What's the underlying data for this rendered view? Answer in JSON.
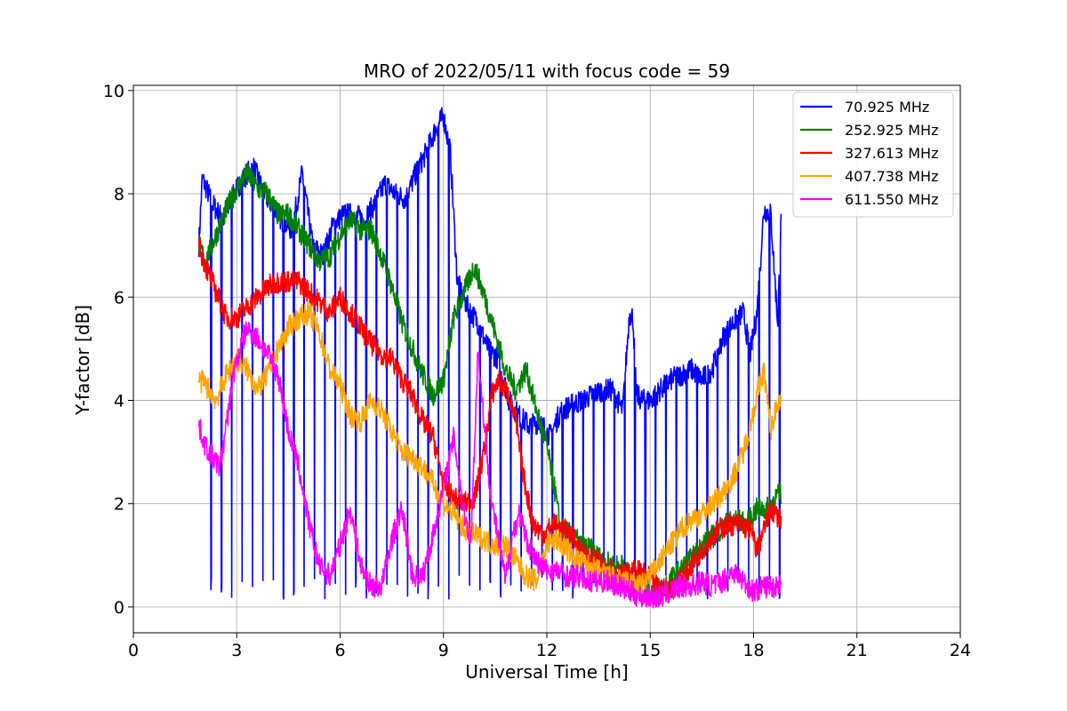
{
  "chart_data": {
    "type": "line",
    "title": "MRO of 2022/05/11 with focus code = 59",
    "xlabel": "Universal Time [h]",
    "ylabel": "Y-factor [dB]",
    "xlim": [
      0,
      24
    ],
    "ylim": [
      -0.5,
      10.1
    ],
    "xticks": [
      0,
      3,
      6,
      9,
      12,
      15,
      18,
      21,
      24
    ],
    "yticks": [
      0,
      2,
      4,
      6,
      8,
      10
    ],
    "grid": true,
    "legend_position": "top-right",
    "series": [
      {
        "name": " 70.925 MHz",
        "color": "#0000ff",
        "periodic_dips": true,
        "x": [
          1.9,
          2.0,
          2.3,
          2.6,
          3.0,
          3.3,
          3.5,
          3.8,
          4.0,
          4.3,
          4.6,
          4.9,
          5.2,
          5.5,
          5.8,
          6.1,
          6.4,
          6.7,
          7.0,
          7.3,
          7.6,
          7.9,
          8.2,
          8.5,
          8.8,
          9.0,
          9.2,
          9.4,
          9.7,
          10.0,
          10.3,
          10.6,
          10.9,
          11.2,
          11.5,
          11.8,
          12.1,
          12.4,
          12.7,
          13.0,
          13.3,
          13.6,
          13.9,
          14.2,
          14.4,
          14.5,
          14.6,
          14.8,
          15.0,
          15.3,
          15.6,
          15.9,
          16.2,
          16.5,
          16.8,
          17.1,
          17.4,
          17.7,
          17.9,
          18.1,
          18.3,
          18.5,
          18.7,
          18.8
        ],
        "y": [
          7.0,
          8.3,
          7.8,
          7.5,
          8.1,
          8.4,
          8.5,
          8.0,
          7.8,
          7.5,
          7.3,
          8.4,
          7.0,
          6.8,
          7.4,
          7.6,
          7.6,
          7.5,
          7.8,
          8.2,
          8.0,
          7.9,
          8.4,
          8.8,
          9.3,
          9.5,
          8.8,
          6.3,
          5.8,
          5.5,
          5.0,
          4.8,
          4.0,
          3.7,
          3.5,
          3.6,
          3.3,
          3.8,
          3.9,
          4.0,
          4.1,
          4.2,
          4.2,
          3.8,
          5.7,
          5.6,
          4.1,
          4.0,
          4.0,
          4.2,
          4.4,
          4.5,
          4.6,
          4.4,
          4.6,
          5.2,
          5.5,
          5.7,
          4.9,
          5.7,
          7.7,
          7.6,
          5.5,
          7.5
        ]
      },
      {
        "name": "252.925 MHz",
        "color": "#008000",
        "x": [
          1.9,
          2.1,
          2.4,
          2.7,
          3.0,
          3.3,
          3.6,
          3.9,
          4.2,
          4.5,
          4.8,
          5.1,
          5.4,
          5.7,
          6.0,
          6.3,
          6.6,
          6.9,
          7.2,
          7.5,
          7.8,
          8.1,
          8.4,
          8.7,
          9.0,
          9.3,
          9.6,
          9.9,
          10.2,
          10.5,
          10.8,
          11.1,
          11.4,
          11.7,
          12.0,
          12.2,
          12.4,
          12.7,
          13.0,
          13.3,
          13.6,
          13.9,
          14.2,
          14.5,
          14.8,
          15.1,
          15.4,
          15.7,
          16.0,
          16.3,
          16.6,
          16.9,
          17.2,
          17.5,
          17.8,
          18.1,
          18.4,
          18.6,
          18.8
        ],
        "y": [
          7.0,
          6.7,
          7.2,
          7.7,
          8.1,
          8.4,
          8.1,
          8.0,
          7.6,
          7.6,
          7.3,
          7.0,
          6.7,
          6.8,
          7.2,
          7.5,
          7.3,
          7.3,
          6.8,
          6.2,
          5.5,
          5.0,
          4.5,
          4.1,
          4.4,
          5.6,
          6.1,
          6.6,
          6.0,
          5.3,
          4.6,
          4.2,
          4.6,
          3.8,
          3.1,
          2.4,
          1.5,
          1.4,
          1.2,
          1.1,
          0.9,
          0.8,
          0.8,
          0.5,
          0.3,
          0.3,
          0.4,
          0.6,
          0.8,
          1.0,
          1.3,
          1.4,
          1.6,
          1.7,
          1.6,
          1.9,
          1.9,
          2.1,
          2.2
        ]
      },
      {
        "name": "327.613 MHz",
        "color": "#ff0000",
        "x": [
          1.9,
          2.1,
          2.4,
          2.7,
          3.0,
          3.3,
          3.6,
          3.9,
          4.2,
          4.5,
          4.8,
          5.1,
          5.4,
          5.7,
          6.0,
          6.3,
          6.6,
          6.9,
          7.2,
          7.5,
          7.8,
          8.1,
          8.4,
          8.7,
          9.0,
          9.3,
          9.6,
          9.9,
          10.2,
          10.4,
          10.6,
          10.9,
          11.1,
          11.3,
          11.6,
          11.9,
          12.2,
          12.5,
          12.8,
          13.1,
          13.4,
          13.7,
          14.0,
          14.3,
          14.6,
          14.9,
          15.2,
          15.5,
          15.8,
          16.1,
          16.4,
          16.7,
          17.0,
          17.3,
          17.6,
          17.9,
          18.1,
          18.3,
          18.5,
          18.8
        ],
        "y": [
          7.0,
          6.6,
          6.1,
          5.6,
          5.6,
          5.8,
          6.0,
          6.2,
          6.3,
          6.3,
          6.3,
          6.1,
          5.9,
          5.7,
          6.0,
          5.7,
          5.4,
          5.1,
          4.9,
          4.8,
          4.4,
          4.1,
          3.6,
          3.3,
          2.4,
          2.1,
          2.0,
          2.1,
          3.1,
          4.1,
          4.4,
          4.1,
          3.6,
          2.6,
          1.6,
          1.4,
          1.6,
          1.5,
          1.3,
          1.0,
          0.9,
          0.8,
          0.7,
          0.6,
          0.7,
          0.6,
          0.4,
          0.3,
          0.5,
          0.7,
          1.0,
          1.3,
          1.5,
          1.6,
          1.6,
          1.5,
          1.1,
          1.5,
          1.9,
          1.7
        ]
      },
      {
        "name": "407.738 MHz",
        "color": "#ffa500",
        "x": [
          1.9,
          2.1,
          2.4,
          2.7,
          3.0,
          3.3,
          3.6,
          3.9,
          4.2,
          4.5,
          4.8,
          5.1,
          5.4,
          5.7,
          6.0,
          6.3,
          6.6,
          6.9,
          7.2,
          7.5,
          7.8,
          8.1,
          8.4,
          8.7,
          9.0,
          9.3,
          9.6,
          9.9,
          10.2,
          10.5,
          10.8,
          11.1,
          11.4,
          11.7,
          12.0,
          12.3,
          12.6,
          12.9,
          13.2,
          13.5,
          13.8,
          14.1,
          14.4,
          14.7,
          15.0,
          15.3,
          15.6,
          15.9,
          16.2,
          16.5,
          16.8,
          17.1,
          17.4,
          17.7,
          17.9,
          18.1,
          18.3,
          18.5,
          18.7,
          18.8
        ],
        "y": [
          4.4,
          4.3,
          4.0,
          4.5,
          4.8,
          4.6,
          4.2,
          4.5,
          5.0,
          5.4,
          5.6,
          5.7,
          5.3,
          4.6,
          4.3,
          3.7,
          3.6,
          4.0,
          3.8,
          3.4,
          3.0,
          2.9,
          2.7,
          2.4,
          2.0,
          1.8,
          1.5,
          1.4,
          1.3,
          1.2,
          1.2,
          0.9,
          0.6,
          0.5,
          1.2,
          1.3,
          1.1,
          0.9,
          0.8,
          0.7,
          0.6,
          0.5,
          0.5,
          0.4,
          0.6,
          0.9,
          1.2,
          1.5,
          1.7,
          1.8,
          2.0,
          2.2,
          2.5,
          3.0,
          3.5,
          4.1,
          4.6,
          3.4,
          4.0,
          4.0
        ]
      },
      {
        "name": "611.550 MHz",
        "color": "#ff00ff",
        "x": [
          1.9,
          2.1,
          2.3,
          2.5,
          2.7,
          2.9,
          3.1,
          3.3,
          3.6,
          3.9,
          4.2,
          4.5,
          4.8,
          5.1,
          5.4,
          5.7,
          6.0,
          6.3,
          6.6,
          6.9,
          7.2,
          7.5,
          7.8,
          8.1,
          8.4,
          8.7,
          9.0,
          9.3,
          9.6,
          9.8,
          10.0,
          10.2,
          10.4,
          10.6,
          10.8,
          11.0,
          11.2,
          11.4,
          11.7,
          12.0,
          12.3,
          12.6,
          12.9,
          13.2,
          13.5,
          13.8,
          14.1,
          14.4,
          14.7,
          15.0,
          15.3,
          15.6,
          15.9,
          16.2,
          16.5,
          16.8,
          17.1,
          17.4,
          17.7,
          18.0,
          18.3,
          18.6,
          18.8
        ],
        "y": [
          3.5,
          3.1,
          2.9,
          2.7,
          3.5,
          4.5,
          5.0,
          5.4,
          5.2,
          4.9,
          4.5,
          3.4,
          2.7,
          1.6,
          0.8,
          0.6,
          1.2,
          1.9,
          0.8,
          0.4,
          0.4,
          1.3,
          1.9,
          0.6,
          0.6,
          1.4,
          2.3,
          3.3,
          1.8,
          1.3,
          5.0,
          3.4,
          2.0,
          1.3,
          0.5,
          1.4,
          1.8,
          1.3,
          0.9,
          0.7,
          0.7,
          0.6,
          0.6,
          0.5,
          0.5,
          0.5,
          0.4,
          0.3,
          0.2,
          0.2,
          0.2,
          0.3,
          0.4,
          0.4,
          0.5,
          0.4,
          0.5,
          0.7,
          0.5,
          0.3,
          0.4,
          0.4,
          0.5
        ]
      }
    ]
  }
}
